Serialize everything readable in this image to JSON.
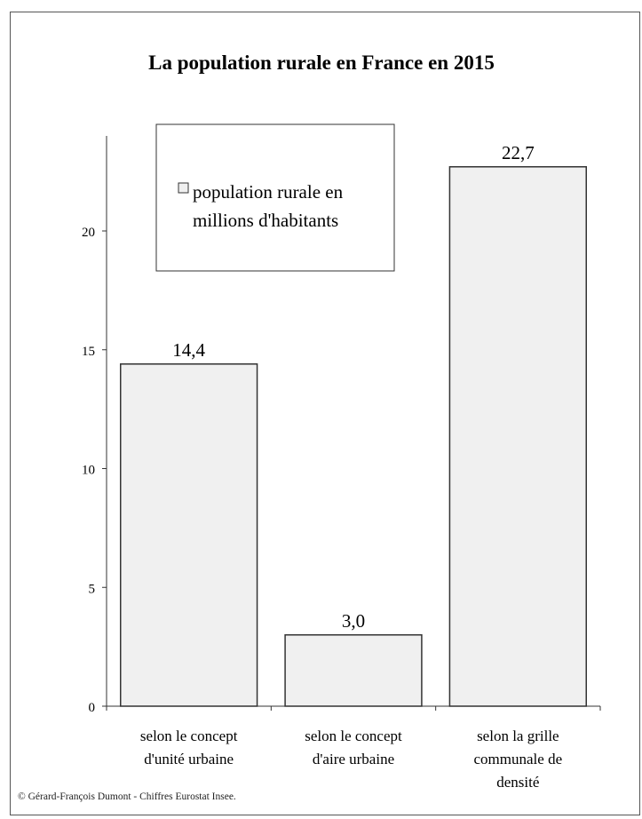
{
  "chart_data": {
    "type": "bar",
    "title": "La population rurale en France en 2015",
    "categories": [
      [
        "selon le concept",
        "d'unité urbaine"
      ],
      [
        "selon le concept",
        "d'aire urbaine"
      ],
      [
        "selon la grille",
        "communale de",
        "densité"
      ]
    ],
    "series": [
      {
        "name": "population rurale en millions d'habitants",
        "legend_lines": [
          "population rurale en",
          "millions d'habitants"
        ],
        "values": [
          14.4,
          3.0,
          22.7
        ],
        "labels": [
          "14,4",
          "3,0",
          "22,7"
        ],
        "color": "#f0f0f0"
      }
    ],
    "yticks": [
      0,
      5,
      10,
      15,
      20
    ],
    "ylim": [
      0,
      24
    ],
    "grid": false,
    "legend_position": "top-center"
  },
  "source": "© Gérard-François Dumont - Chiffres Eurostat Insee."
}
